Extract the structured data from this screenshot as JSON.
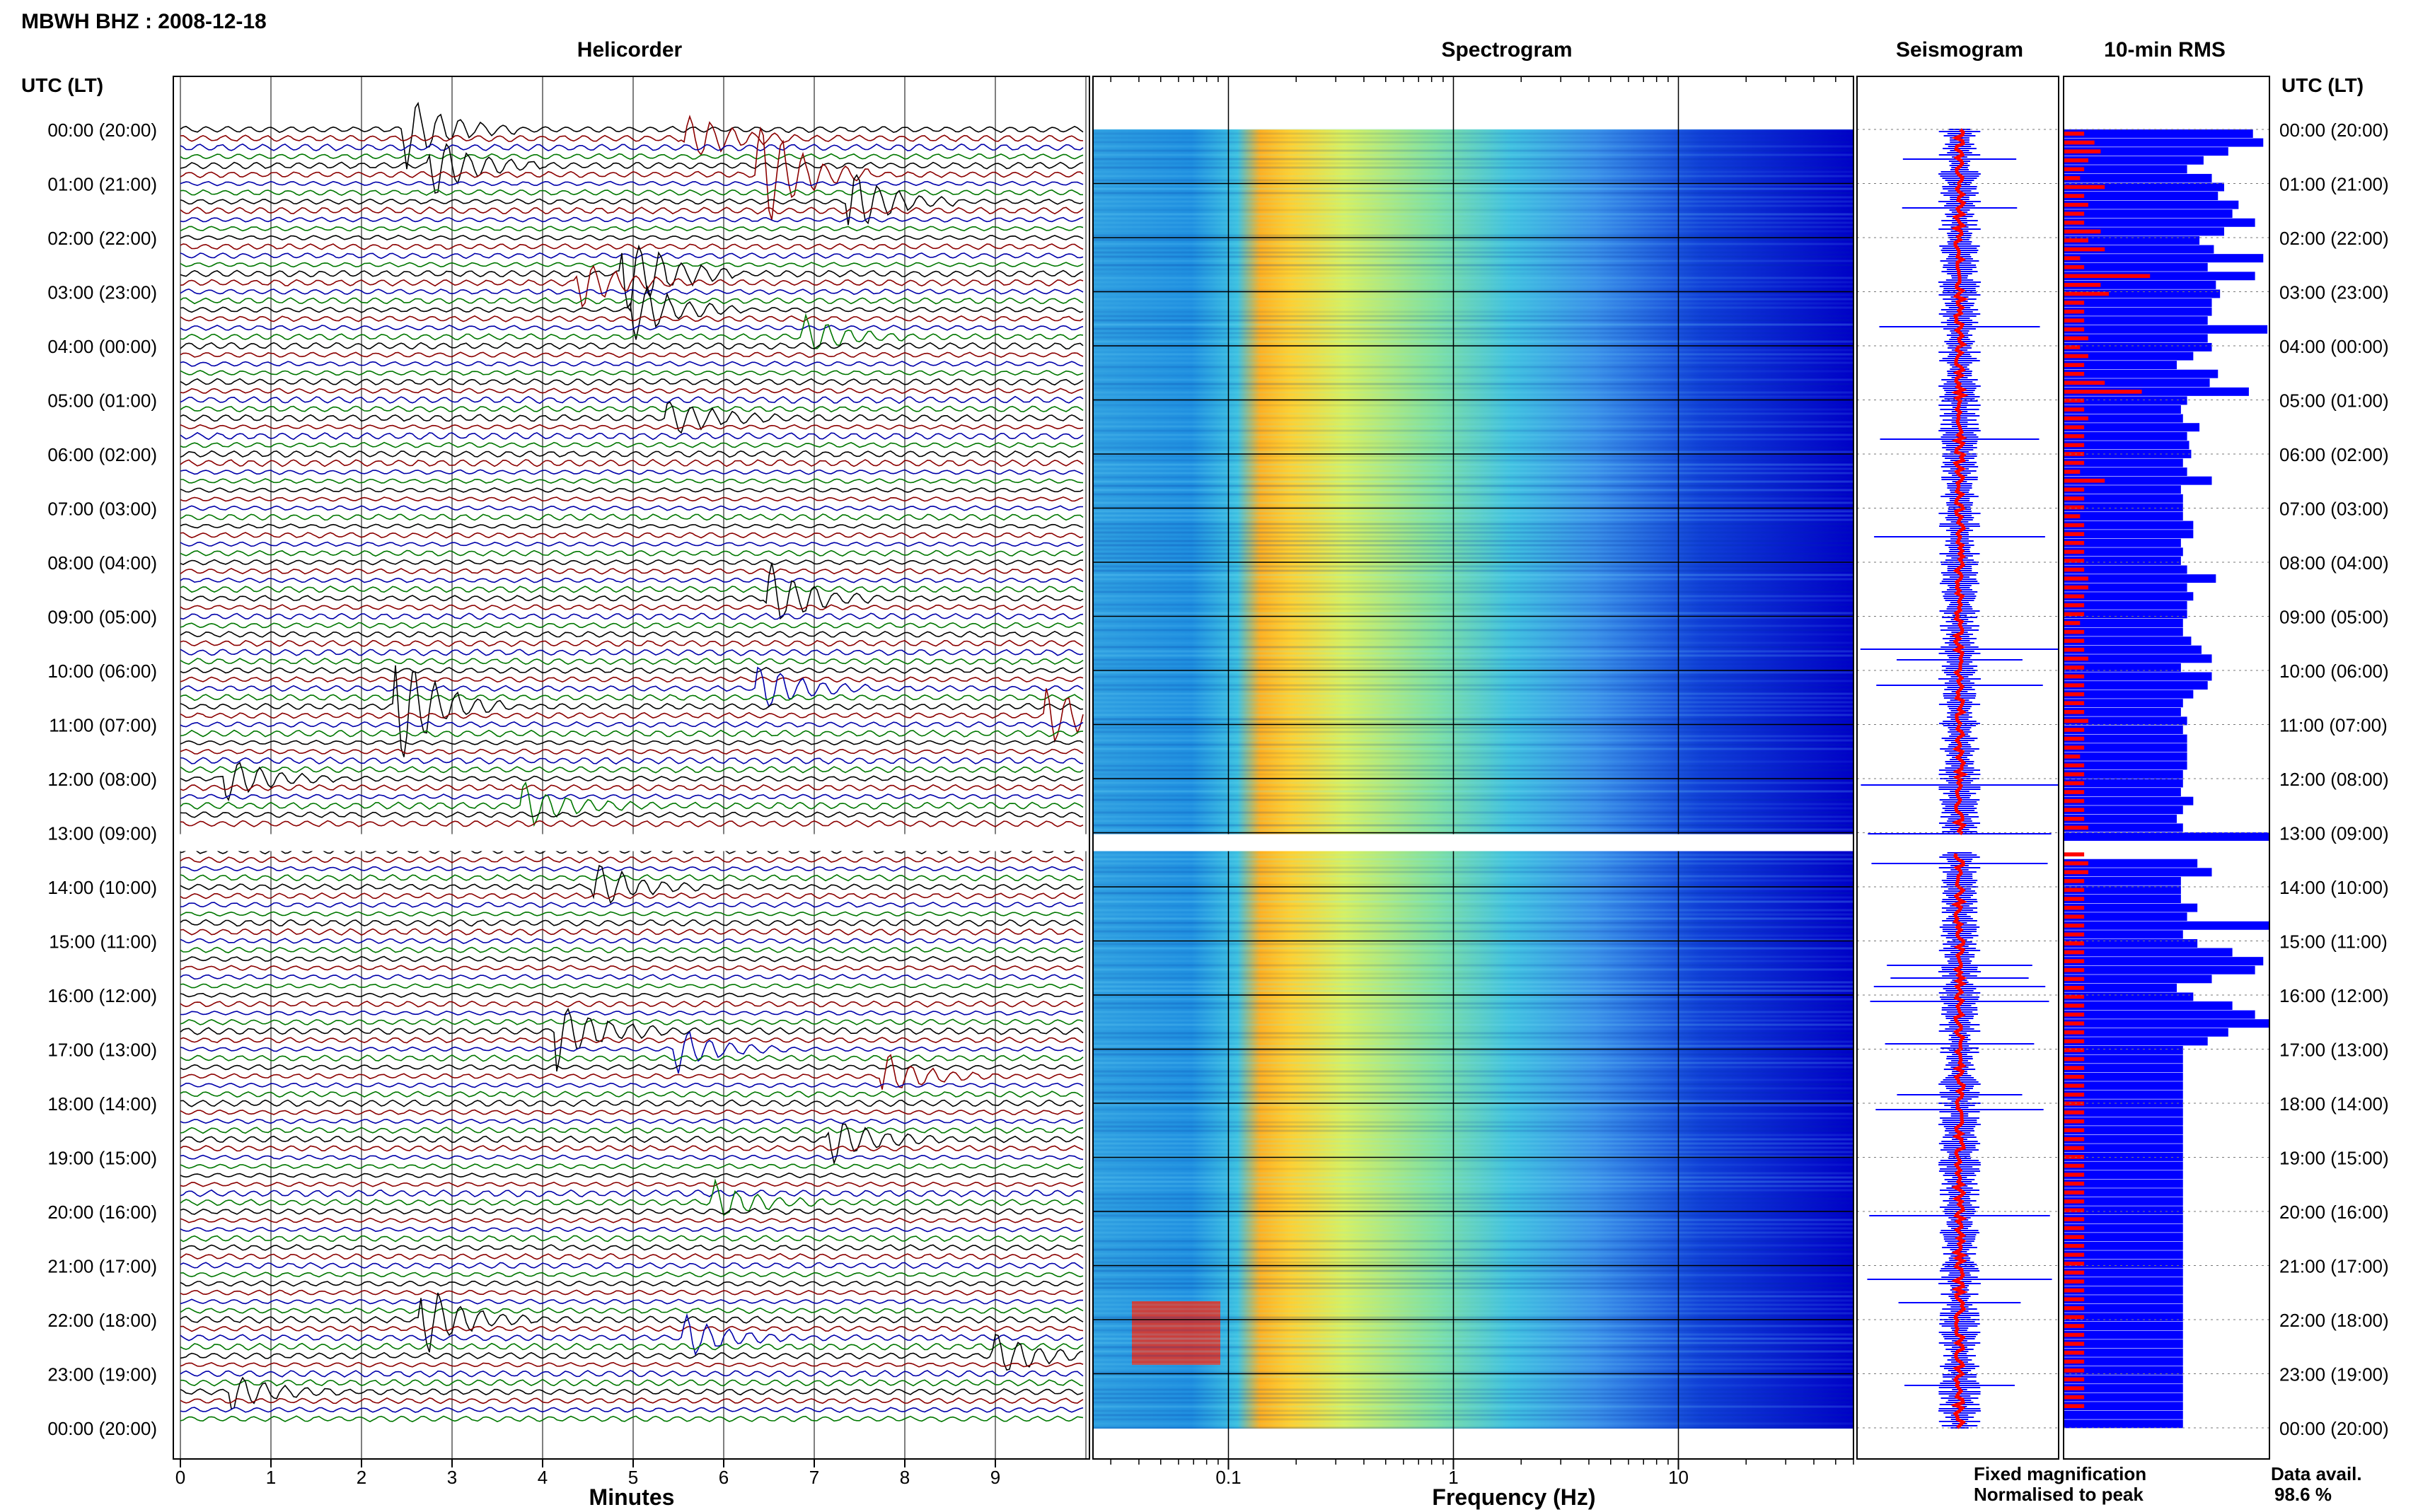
{
  "header": {
    "station": "MBWH BHZ : 2008-12-18"
  },
  "panels": {
    "helicorder": "Helicorder",
    "spectrogram": "Spectrogram",
    "seismogram": "Seismogram",
    "rms": "10-min RMS"
  },
  "axis_titles": {
    "time_left": "UTC (LT)",
    "time_right": "UTC (LT)",
    "minutes": "Minutes",
    "frequency": "Frequency (Hz)"
  },
  "legend": {
    "fixed": "Fixed magnification",
    "normalised": "Normalised to peak",
    "fixed_color": "#0000ff",
    "normalised_color": "#ff0000"
  },
  "data_avail": {
    "label": "Data avail.",
    "value": "98.6 %"
  },
  "colors": {
    "trace_cycle": [
      "#000000",
      "#8b0000",
      "#0000aa",
      "#007700"
    ],
    "rms_blue": "#0000ff",
    "rms_red": "#ff0000",
    "spectrogram_scale": [
      "#0000c8",
      "#1f6fe0",
      "#2ab0e8",
      "#55d8c0",
      "#b8ec50",
      "#ffe020",
      "#ff8c00",
      "#e01a1a"
    ]
  },
  "chart_data": [
    {
      "type": "helicorder",
      "title": "Helicorder",
      "xlabel": "Minutes",
      "x_ticks": [
        "0",
        "1",
        "2",
        "3",
        "4",
        "5",
        "6",
        "7",
        "8",
        "9"
      ],
      "xlim": [
        0,
        10
      ],
      "time_labels": [
        "00:00 (20:00)",
        "01:00 (21:00)",
        "02:00 (22:00)",
        "03:00 (23:00)",
        "04:00 (00:00)",
        "05:00 (01:00)",
        "06:00 (02:00)",
        "07:00 (03:00)",
        "08:00 (04:00)",
        "09:00 (05:00)",
        "10:00 (06:00)",
        "11:00 (07:00)",
        "12:00 (08:00)",
        "13:00 (09:00)",
        "14:00 (10:00)",
        "15:00 (11:00)",
        "16:00 (12:00)",
        "17:00 (13:00)",
        "18:00 (14:00)",
        "19:00 (15:00)",
        "20:00 (16:00)",
        "21:00 (17:00)",
        "22:00 (18:00)",
        "23:00 (19:00)",
        "00:00 (20:00)"
      ],
      "lines_per_hour": 6,
      "data_gap_after_hour": 13,
      "events": [
        {
          "hour": 0.0,
          "minute": 2.5,
          "amplitude": 3.0
        },
        {
          "hour": 0.1,
          "minute": 5.6,
          "amplitude": 2.2
        },
        {
          "hour": 0.6,
          "minute": 2.8,
          "amplitude": 2.5
        },
        {
          "hour": 0.8,
          "minute": 6.4,
          "amplitude": 5.0
        },
        {
          "hour": 1.3,
          "minute": 7.4,
          "amplitude": 3.0
        },
        {
          "hour": 2.6,
          "minute": 4.9,
          "amplitude": 4.5
        },
        {
          "hour": 2.9,
          "minute": 4.4,
          "amplitude": 2.0
        },
        {
          "hour": 3.3,
          "minute": 5.0,
          "amplitude": 2.8
        },
        {
          "hour": 3.9,
          "minute": 6.9,
          "amplitude": 1.6
        },
        {
          "hour": 5.3,
          "minute": 5.4,
          "amplitude": 1.6
        },
        {
          "hour": 8.6,
          "minute": 6.5,
          "amplitude": 2.8
        },
        {
          "hour": 10.3,
          "minute": 6.4,
          "amplitude": 2.2
        },
        {
          "hour": 10.6,
          "minute": 2.4,
          "amplitude": 5.0
        },
        {
          "hour": 10.9,
          "minute": 9.6,
          "amplitude": 2.5
        },
        {
          "hour": 12.0,
          "minute": 0.5,
          "amplitude": 2.0
        },
        {
          "hour": 12.5,
          "minute": 3.8,
          "amplitude": 2.0
        },
        {
          "hour": 14.0,
          "minute": 4.6,
          "amplitude": 2.0
        },
        {
          "hour": 16.6,
          "minute": 4.2,
          "amplitude": 3.0
        },
        {
          "hour": 17.0,
          "minute": 5.5,
          "amplitude": 2.0
        },
        {
          "hour": 17.5,
          "minute": 7.8,
          "amplitude": 1.8
        },
        {
          "hour": 18.6,
          "minute": 7.2,
          "amplitude": 2.0
        },
        {
          "hour": 19.9,
          "minute": 5.9,
          "amplitude": 1.6
        },
        {
          "hour": 22.0,
          "minute": 2.7,
          "amplitude": 2.8
        },
        {
          "hour": 22.4,
          "minute": 5.6,
          "amplitude": 1.8
        },
        {
          "hour": 22.6,
          "minute": 9.0,
          "amplitude": 2.0
        },
        {
          "hour": 23.4,
          "minute": 0.6,
          "amplitude": 1.4
        }
      ]
    },
    {
      "type": "heatmap",
      "title": "Spectrogram",
      "xlabel": "Frequency (Hz)",
      "x_scale": "log",
      "xlim": [
        0.025,
        60
      ],
      "x_ticks": [
        "0.1",
        "1",
        "10"
      ],
      "peak_band_hz": [
        0.15,
        0.3
      ],
      "data_gap_after_hour": 13
    },
    {
      "type": "line",
      "title": "Seismogram",
      "series": [
        {
          "name": "Fixed magnification",
          "color": "#0000ff"
        },
        {
          "name": "Normalised to peak",
          "color": "#ff0000"
        }
      ]
    },
    {
      "type": "bar",
      "title": "10-min RMS",
      "orientation": "horizontal",
      "rms_fixed": [
        0.92,
        0.97,
        0.8,
        0.68,
        0.6,
        0.72,
        0.78,
        0.75,
        0.85,
        0.82,
        0.93,
        0.78,
        0.66,
        0.73,
        0.97,
        0.7,
        0.93,
        0.74,
        0.76,
        0.72,
        0.72,
        0.7,
        0.99,
        0.7,
        0.72,
        0.63,
        0.55,
        0.75,
        0.71,
        0.9,
        0.6,
        0.57,
        0.58,
        0.66,
        0.6,
        0.61,
        0.62,
        0.58,
        0.6,
        0.72,
        0.57,
        0.58,
        0.58,
        0.58,
        0.63,
        0.63,
        0.57,
        0.58,
        0.57,
        0.6,
        0.74,
        0.6,
        0.63,
        0.6,
        0.6,
        0.58,
        0.58,
        0.62,
        0.67,
        0.72,
        0.57,
        0.72,
        0.7,
        0.63,
        0.58,
        0.57,
        0.6,
        0.58,
        0.6,
        0.6,
        0.6,
        0.6,
        0.58,
        0.58,
        0.57,
        0.63,
        0.58,
        0.55,
        0.58,
        1.0,
        0.57,
        0.57,
        0.65,
        0.72,
        0.57,
        0.57,
        0.57,
        0.65,
        0.6,
        1.0,
        0.58,
        0.65,
        0.82,
        0.97,
        0.93,
        0.72,
        0.55,
        0.63,
        0.82,
        0.93,
        1.0,
        0.8,
        0.7,
        0.58,
        0.58,
        0.58,
        0.58,
        0.58,
        0.58,
        0.58,
        0.58,
        0.58,
        0.58,
        0.58,
        0.58,
        0.58,
        0.58,
        0.58,
        0.58,
        0.58,
        0.58,
        0.58,
        0.58,
        0.58,
        0.58,
        0.58,
        0.58,
        0.58,
        0.58,
        0.58,
        0.58,
        0.58,
        0.58,
        0.58,
        0.58,
        0.58,
        0.58,
        0.58,
        0.58,
        0.58,
        0.58,
        0.58,
        0.58,
        0.58,
        0.58,
        0.58
      ],
      "rms_normalised": [
        0.1,
        0.15,
        0.18,
        0.12,
        0.1,
        0.08,
        0.2,
        0.1,
        0.12,
        0.1,
        0.1,
        0.18,
        0.12,
        0.2,
        0.08,
        0.1,
        0.42,
        0.18,
        0.22,
        0.1,
        0.1,
        0.1,
        0.1,
        0.12,
        0.08,
        0.12,
        0.1,
        0.1,
        0.2,
        0.38,
        0.1,
        0.1,
        0.12,
        0.1,
        0.1,
        0.1,
        0.1,
        0.1,
        0.08,
        0.2,
        0.1,
        0.1,
        0.1,
        0.08,
        0.1,
        0.1,
        0.1,
        0.1,
        0.1,
        0.1,
        0.12,
        0.12,
        0.1,
        0.1,
        0.1,
        0.08,
        0.1,
        0.1,
        0.1,
        0.12,
        0.1,
        0.1,
        0.1,
        0.1,
        0.1,
        0.1,
        0.12,
        0.1,
        0.1,
        0.1,
        0.08,
        0.1,
        0.1,
        0.1,
        0.1,
        0.1,
        0.1,
        0.1,
        0.12,
        0.1,
        0.1,
        0.1,
        0.12,
        0.12,
        0.1,
        0.1,
        0.1,
        0.1,
        0.1,
        0.1,
        0.1,
        0.1,
        0.1,
        0.1,
        0.1,
        0.1,
        0.1,
        0.1,
        0.1,
        0.1,
        0.1,
        0.1,
        0.1,
        0.1,
        0.1,
        0.1,
        0.1,
        0.1,
        0.1,
        0.1,
        0.1,
        0.1,
        0.1,
        0.1,
        0.1,
        0.1,
        0.1,
        0.1,
        0.1,
        0.1,
        0.1,
        0.1,
        0.1,
        0.1,
        0.1,
        0.1,
        0.1,
        0.1,
        0.1,
        0.1,
        0.1,
        0.1,
        0.1,
        0.1,
        0.1,
        0.1,
        0.1,
        0.1,
        0.1,
        0.1,
        0.1,
        0.1,
        0.1,
        0.1
      ]
    }
  ]
}
